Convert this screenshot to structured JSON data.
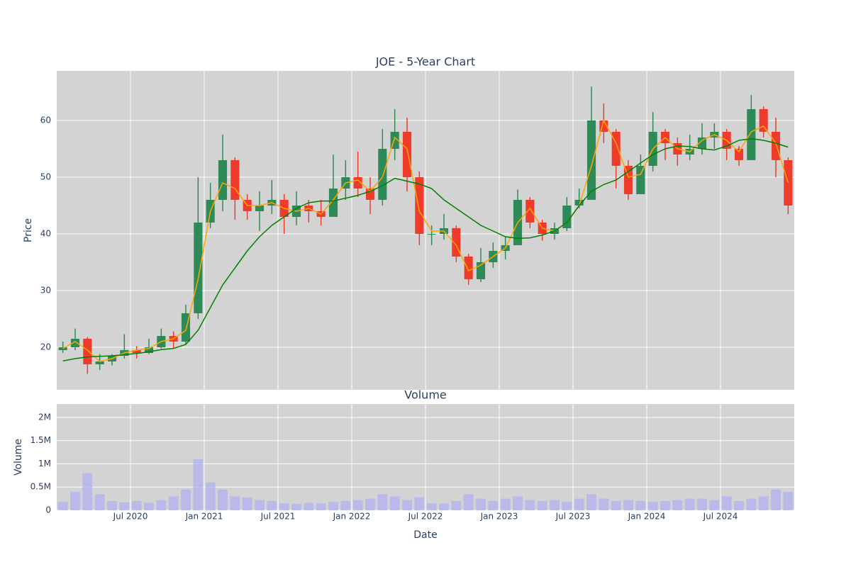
{
  "chart_data": [
    {
      "type": "candlestick",
      "title": "JOE - 5-Year Chart",
      "y_label": "Price",
      "x": [
        "2020-01",
        "2020-02",
        "2020-03",
        "2020-04",
        "2020-05",
        "2020-06",
        "2020-07",
        "2020-08",
        "2020-09",
        "2020-10",
        "2020-11",
        "2020-12",
        "2021-01",
        "2021-02",
        "2021-03",
        "2021-04",
        "2021-05",
        "2021-06",
        "2021-07",
        "2021-08",
        "2021-09",
        "2021-10",
        "2021-11",
        "2021-12",
        "2022-01",
        "2022-02",
        "2022-03",
        "2022-04",
        "2022-05",
        "2022-06",
        "2022-07",
        "2022-08",
        "2022-09",
        "2022-10",
        "2022-11",
        "2022-12",
        "2023-01",
        "2023-02",
        "2023-03",
        "2023-04",
        "2023-05",
        "2023-06",
        "2023-07",
        "2023-08",
        "2023-09",
        "2023-10",
        "2023-11",
        "2023-12",
        "2024-01",
        "2024-02",
        "2024-03",
        "2024-04",
        "2024-05",
        "2024-06",
        "2024-07",
        "2024-08",
        "2024-09",
        "2024-10",
        "2024-11",
        "2024-12"
      ],
      "open": [
        19.5,
        20,
        21.5,
        17,
        17.5,
        18.5,
        19.5,
        19,
        20,
        22,
        21,
        26,
        42,
        46,
        53,
        46,
        44,
        45,
        46,
        43,
        45,
        44,
        43,
        48,
        50,
        48,
        46,
        55,
        58,
        50,
        40,
        40,
        41,
        36,
        32,
        35,
        37,
        38,
        46,
        42,
        40,
        41,
        45,
        46,
        60,
        58,
        52,
        47,
        52,
        58,
        56,
        54,
        55,
        57,
        58,
        55,
        53,
        62,
        58,
        53
      ],
      "high": [
        21,
        23.3,
        21.8,
        18.8,
        18.8,
        22.3,
        20.2,
        21.5,
        23.3,
        22.8,
        27.5,
        50,
        49,
        57.5,
        53.5,
        47,
        47.5,
        49.5,
        47,
        47.5,
        46,
        46,
        54,
        53,
        54.5,
        50,
        58.5,
        62,
        60.5,
        51,
        41.5,
        43.5,
        41.5,
        36.5,
        37.5,
        38.5,
        39.5,
        47.8,
        46.5,
        42.5,
        42,
        46.5,
        48,
        66,
        63,
        58.5,
        53,
        54,
        61.5,
        58.5,
        57,
        57.5,
        59.5,
        59.5,
        58.5,
        55.5,
        64.5,
        62.5,
        60.5,
        53.5
      ],
      "low": [
        19,
        19.5,
        15.3,
        16,
        16.8,
        18,
        18,
        18.8,
        19.8,
        19.8,
        20.5,
        25,
        41,
        44,
        42.5,
        42.5,
        40.5,
        43.5,
        40,
        41.5,
        42,
        41.5,
        43,
        46,
        46.5,
        43.5,
        45,
        53,
        47.5,
        38,
        38,
        39,
        35,
        31,
        31.5,
        34,
        35.5,
        38,
        41,
        38.8,
        39,
        40.5,
        44.5,
        46,
        56,
        48,
        46,
        47,
        51,
        53,
        52,
        53,
        54,
        55,
        53,
        52,
        53,
        57,
        50,
        43.5
      ],
      "close": [
        20,
        21.5,
        17,
        17.5,
        18.5,
        19.5,
        19,
        20,
        22,
        21,
        26,
        42,
        46,
        53,
        46,
        44,
        45,
        46,
        43,
        45,
        44,
        43,
        48,
        50,
        48,
        46,
        55,
        58,
        50,
        40,
        40,
        41,
        36,
        32,
        35,
        37,
        38,
        46,
        42,
        40,
        41,
        45,
        46,
        60,
        58,
        52,
        47,
        52,
        58,
        56,
        54,
        55,
        57,
        58,
        55,
        53,
        62,
        58,
        53,
        45
      ],
      "increasing_color": "#2e8b57",
      "decreasing_color": "#ef3b2c",
      "lines": [
        {
          "color": "#ffa500",
          "values": [
            19.8,
            21,
            19.5,
            17.5,
            18,
            19,
            19.5,
            19.8,
            21,
            21.5,
            23,
            32,
            44,
            49,
            48,
            45,
            45,
            45.5,
            44.5,
            44,
            44.5,
            43.5,
            46,
            49,
            49.5,
            47.5,
            50,
            57,
            55,
            44,
            40.5,
            40.5,
            38,
            33.5,
            34.5,
            36,
            37.5,
            42,
            44.5,
            41,
            40.5,
            42,
            45,
            52,
            60,
            56,
            50,
            50.5,
            55,
            57,
            55,
            54.5,
            56.5,
            57.5,
            56.5,
            54.5,
            58,
            59,
            56,
            49
          ]
        },
        {
          "color": "#008000",
          "values": [
            17.6,
            18,
            18.3,
            18.4,
            18.5,
            18.7,
            18.9,
            19.2,
            19.6,
            19.8,
            20.5,
            23,
            27,
            31,
            34,
            37,
            39.5,
            41.5,
            43,
            44.5,
            45.5,
            45.8,
            45.8,
            46.3,
            46.8,
            47.5,
            48.5,
            49.8,
            49.3,
            48.8,
            48,
            46,
            44.5,
            43,
            41.5,
            40.5,
            39.5,
            39.2,
            39.3,
            39.8,
            40.5,
            42,
            45,
            47.5,
            48.7,
            49.5,
            51,
            52.5,
            54,
            55,
            55.5,
            55.4,
            55,
            54.8,
            55.5,
            56.5,
            56.8,
            56.5,
            56,
            55.3
          ]
        }
      ],
      "xlim": [
        "2020-01",
        "2025-01"
      ],
      "ylim": [
        12.5,
        68.75
      ],
      "yticks": [
        20,
        30,
        40,
        50,
        60
      ],
      "grid": true
    },
    {
      "type": "bar",
      "title": "Volume",
      "y_label": "Volume",
      "x_label": "Date",
      "color": "#b4b4f0",
      "values": [
        180000,
        400000,
        800000,
        350000,
        200000,
        170000,
        200000,
        160000,
        220000,
        300000,
        450000,
        1100000,
        600000,
        450000,
        300000,
        280000,
        220000,
        200000,
        150000,
        140000,
        160000,
        150000,
        180000,
        200000,
        220000,
        250000,
        350000,
        300000,
        220000,
        280000,
        150000,
        150000,
        200000,
        350000,
        250000,
        200000,
        250000,
        300000,
        220000,
        200000,
        220000,
        180000,
        250000,
        350000,
        250000,
        200000,
        220000,
        200000,
        180000,
        200000,
        220000,
        250000,
        250000,
        220000,
        300000,
        200000,
        250000,
        300000,
        450000,
        400000
      ],
      "ylim": [
        0,
        2290000
      ],
      "yticks": [
        0,
        {
          "value": 500000,
          "label": "0.5M"
        },
        {
          "value": 1000000,
          "label": "1M"
        },
        {
          "value": 1500000,
          "label": "1.5M"
        },
        {
          "value": 2000000,
          "label": "2M"
        }
      ],
      "xticks": [
        {
          "value": "2020-07",
          "label": "Jul 2020"
        },
        {
          "value": "2021-01",
          "label": "Jan 2021"
        },
        {
          "value": "2021-07",
          "label": "Jul 2021"
        },
        {
          "value": "2022-01",
          "label": "Jan 2022"
        },
        {
          "value": "2022-07",
          "label": "Jul 2022"
        },
        {
          "value": "2023-01",
          "label": "Jan 2023"
        },
        {
          "value": "2023-07",
          "label": "Jul 2023"
        },
        {
          "value": "2024-01",
          "label": "Jan 2024"
        },
        {
          "value": "2024-07",
          "label": "Jul 2024"
        }
      ],
      "grid": true
    }
  ]
}
